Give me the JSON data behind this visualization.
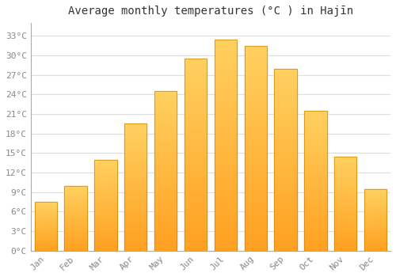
{
  "title": "Average monthly temperatures (°C ) in Hajīn",
  "months": [
    "Jan",
    "Feb",
    "Mar",
    "Apr",
    "May",
    "Jun",
    "Jul",
    "Aug",
    "Sep",
    "Oct",
    "Nov",
    "Dec"
  ],
  "temperatures": [
    7.5,
    10.0,
    14.0,
    19.5,
    24.5,
    29.5,
    32.5,
    31.5,
    28.0,
    21.5,
    14.5,
    9.5
  ],
  "bar_color_bottom": "#FFA020",
  "bar_color_top": "#FFD060",
  "bar_edge_color": "#CC8800",
  "background_color": "#FFFFFF",
  "grid_color": "#DDDDDD",
  "text_color": "#888888",
  "title_color": "#333333",
  "yticks": [
    0,
    3,
    6,
    9,
    12,
    15,
    18,
    21,
    24,
    27,
    30,
    33
  ],
  "ylim": [
    0,
    35
  ],
  "title_fontsize": 10,
  "tick_fontsize": 8,
  "font_family": "monospace"
}
